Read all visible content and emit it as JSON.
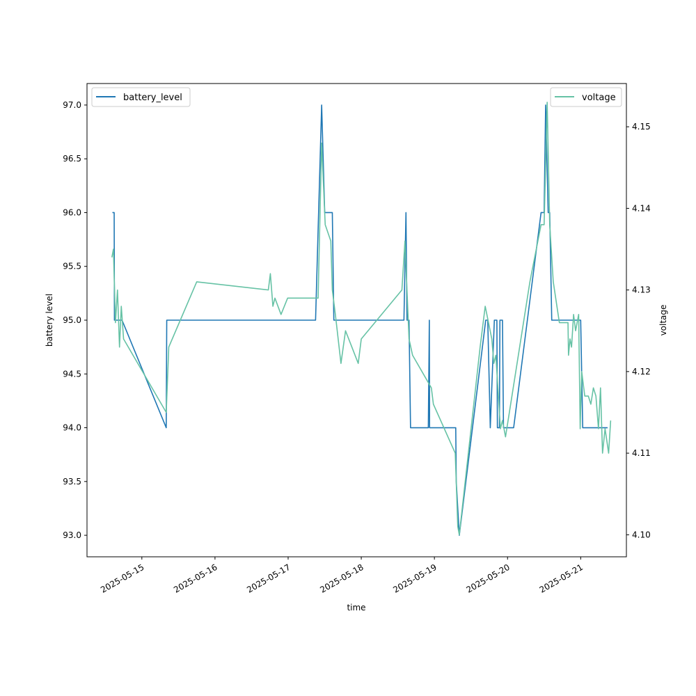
{
  "chart_data": {
    "type": "line",
    "title": "",
    "xlabel": "time",
    "ylabel": "battery level",
    "y2label": "voltage",
    "xlim": [
      "2025-05-14 06:00",
      "2025-05-21 15:00"
    ],
    "ylim": [
      92.8,
      97.2
    ],
    "y2lim": [
      4.0973,
      4.1553
    ],
    "x_ticks": [
      "2025-05-15",
      "2025-05-16",
      "2025-05-17",
      "2025-05-18",
      "2025-05-19",
      "2025-05-20",
      "2025-05-21"
    ],
    "y_ticks": [
      "93.0",
      "93.5",
      "94.0",
      "94.5",
      "95.0",
      "95.5",
      "96.0",
      "96.5",
      "97.0"
    ],
    "y2_ticks": [
      "4.10",
      "4.11",
      "4.12",
      "4.13",
      "4.14",
      "4.15"
    ],
    "grid": false,
    "series": [
      {
        "name": "battery_level",
        "axis": "left",
        "color": "#1f77b4",
        "legend": "upper-left",
        "points": [
          [
            "2025-05-14 14:20",
            96.0
          ],
          [
            "2025-05-14 14:55",
            96.0
          ],
          [
            "2025-05-14 15:00",
            95.0
          ],
          [
            "2025-05-14 17:30",
            95.0
          ],
          [
            "2025-05-15 08:00",
            94.0
          ],
          [
            "2025-05-15 08:10",
            95.0
          ],
          [
            "2025-05-17 09:00",
            95.0
          ],
          [
            "2025-05-17 11:00",
            97.0
          ],
          [
            "2025-05-17 12:00",
            96.0
          ],
          [
            "2025-05-17 14:30",
            96.0
          ],
          [
            "2025-05-17 15:00",
            95.0
          ],
          [
            "2025-05-18 14:00",
            95.0
          ],
          [
            "2025-05-18 14:40",
            96.0
          ],
          [
            "2025-05-18 15:00",
            95.0
          ],
          [
            "2025-05-18 15:40",
            95.0
          ],
          [
            "2025-05-18 16:10",
            94.0
          ],
          [
            "2025-05-18 22:00",
            94.0
          ],
          [
            "2025-05-18 22:20",
            95.0
          ],
          [
            "2025-05-18 22:25",
            94.0
          ],
          [
            "2025-05-19 07:00",
            94.0
          ],
          [
            "2025-05-19 07:10",
            93.5
          ],
          [
            "2025-05-19 08:10",
            93.0
          ],
          [
            "2025-05-19 16:50",
            95.0
          ],
          [
            "2025-05-19 17:30",
            95.0
          ],
          [
            "2025-05-19 18:20",
            94.0
          ],
          [
            "2025-05-19 19:40",
            95.0
          ],
          [
            "2025-05-19 20:30",
            95.0
          ],
          [
            "2025-05-19 20:40",
            94.0
          ],
          [
            "2025-05-19 21:20",
            94.0
          ],
          [
            "2025-05-19 21:30",
            95.0
          ],
          [
            "2025-05-19 22:20",
            95.0
          ],
          [
            "2025-05-19 22:40",
            94.0
          ],
          [
            "2025-05-20 02:00",
            94.0
          ],
          [
            "2025-05-20 11:00",
            96.0
          ],
          [
            "2025-05-20 12:00",
            96.0
          ],
          [
            "2025-05-20 12:30",
            97.0
          ],
          [
            "2025-05-20 13:20",
            96.0
          ],
          [
            "2025-05-20 13:50",
            96.0
          ],
          [
            "2025-05-20 14:30",
            95.0
          ],
          [
            "2025-05-20 23:00",
            95.0
          ],
          [
            "2025-05-21 00:00",
            95.0
          ],
          [
            "2025-05-21 00:20",
            94.5
          ],
          [
            "2025-05-21 00:40",
            94.0
          ],
          [
            "2025-05-21 08:50",
            94.0
          ]
        ]
      },
      {
        "name": "voltage",
        "axis": "right",
        "color": "#66c2a5",
        "legend": "upper-right",
        "points": [
          [
            "2025-05-14 14:10",
            4.134
          ],
          [
            "2025-05-14 14:40",
            4.135
          ],
          [
            "2025-05-14 15:20",
            4.126
          ],
          [
            "2025-05-14 16:00",
            4.13
          ],
          [
            "2025-05-14 16:40",
            4.123
          ],
          [
            "2025-05-14 17:15",
            4.128
          ],
          [
            "2025-05-14 18:00",
            4.124
          ],
          [
            "2025-05-15 08:00",
            4.115
          ],
          [
            "2025-05-15 08:50",
            4.123
          ],
          [
            "2025-05-15 18:00",
            4.131
          ],
          [
            "2025-05-16 17:30",
            4.13
          ],
          [
            "2025-05-16 18:10",
            4.132
          ],
          [
            "2025-05-16 19:00",
            4.128
          ],
          [
            "2025-05-16 19:40",
            4.129
          ],
          [
            "2025-05-16 21:40",
            4.127
          ],
          [
            "2025-05-16 23:50",
            4.129
          ],
          [
            "2025-05-17 09:50",
            4.129
          ],
          [
            "2025-05-17 11:00",
            4.148
          ],
          [
            "2025-05-17 12:10",
            4.138
          ],
          [
            "2025-05-17 14:00",
            4.136
          ],
          [
            "2025-05-17 14:30",
            4.13
          ],
          [
            "2025-05-17 15:30",
            4.127
          ],
          [
            "2025-05-17 17:20",
            4.121
          ],
          [
            "2025-05-17 18:50",
            4.125
          ],
          [
            "2025-05-17 23:00",
            4.121
          ],
          [
            "2025-05-18 00:00",
            4.124
          ],
          [
            "2025-05-18 13:20",
            4.13
          ],
          [
            "2025-05-18 14:20",
            4.136
          ],
          [
            "2025-05-18 15:40",
            4.124
          ],
          [
            "2025-05-18 16:50",
            4.122
          ],
          [
            "2025-05-18 23:00",
            4.118
          ],
          [
            "2025-05-18 23:40",
            4.116
          ],
          [
            "2025-05-19 06:50",
            4.11
          ],
          [
            "2025-05-19 07:40",
            4.101
          ],
          [
            "2025-05-19 08:10",
            4.1
          ],
          [
            "2025-05-19 15:00",
            4.123
          ],
          [
            "2025-05-19 16:40",
            4.128
          ],
          [
            "2025-05-19 18:50",
            4.124
          ],
          [
            "2025-05-19 19:30",
            4.121
          ],
          [
            "2025-05-19 20:10",
            4.122
          ],
          [
            "2025-05-19 21:40",
            4.113
          ],
          [
            "2025-05-19 22:20",
            4.114
          ],
          [
            "2025-05-19 23:20",
            4.112
          ],
          [
            "2025-05-20 07:20",
            4.131
          ],
          [
            "2025-05-20 11:00",
            4.138
          ],
          [
            "2025-05-20 12:00",
            4.138
          ],
          [
            "2025-05-20 13:00",
            4.153
          ],
          [
            "2025-05-20 13:50",
            4.138
          ],
          [
            "2025-05-20 15:00",
            4.131
          ],
          [
            "2025-05-20 17:00",
            4.126
          ],
          [
            "2025-05-20 19:50",
            4.126
          ],
          [
            "2025-05-20 20:00",
            4.122
          ],
          [
            "2025-05-20 20:30",
            4.124
          ],
          [
            "2025-05-20 21:00",
            4.123
          ],
          [
            "2025-05-20 21:40",
            4.127
          ],
          [
            "2025-05-20 22:20",
            4.125
          ],
          [
            "2025-05-20 22:50",
            4.126
          ],
          [
            "2025-05-20 23:20",
            4.127
          ],
          [
            "2025-05-20 23:50",
            4.113
          ],
          [
            "2025-05-21 00:20",
            4.12
          ],
          [
            "2025-05-21 01:20",
            4.117
          ],
          [
            "2025-05-21 02:30",
            4.117
          ],
          [
            "2025-05-21 03:20",
            4.116
          ],
          [
            "2025-05-21 04:10",
            4.118
          ],
          [
            "2025-05-21 05:00",
            4.117
          ],
          [
            "2025-05-21 05:50",
            4.113
          ],
          [
            "2025-05-21 06:30",
            4.118
          ],
          [
            "2025-05-21 07:10",
            4.11
          ],
          [
            "2025-05-21 08:00",
            4.113
          ],
          [
            "2025-05-21 09:10",
            4.11
          ],
          [
            "2025-05-21 09:50",
            4.114
          ]
        ]
      }
    ]
  }
}
